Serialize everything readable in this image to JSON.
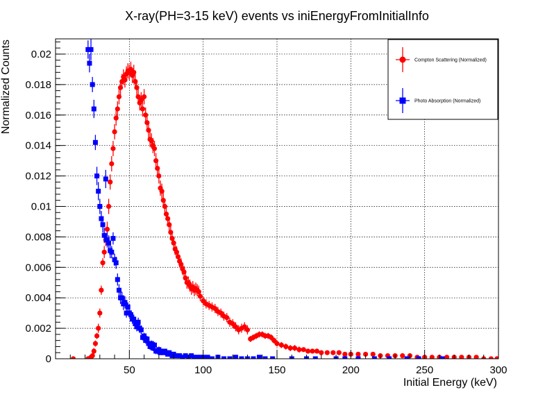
{
  "chart_data": {
    "type": "scatter",
    "title": "X-ray(PH=3-15 keV) events vs iniEnergyFromInitialInfo",
    "xlabel": "Initial Energy (keV)",
    "ylabel": "Normalized Counts",
    "xlim": [
      0,
      300
    ],
    "ylim": [
      0,
      0.021
    ],
    "x_ticks": [
      50,
      100,
      150,
      200,
      250,
      300
    ],
    "x_tick_labels": [
      "50",
      "100",
      "150",
      "200",
      "250",
      "300"
    ],
    "y_ticks": [
      0,
      0.002,
      0.004,
      0.006,
      0.008,
      0.01,
      0.012,
      0.014,
      0.016,
      0.018,
      0.02
    ],
    "y_tick_labels": [
      "0",
      "0.002",
      "0.004",
      "0.006",
      "0.008",
      "0.01",
      "0.012",
      "0.014",
      "0.016",
      "0.018",
      "0.02"
    ],
    "grid": true,
    "legend_position": "top-right",
    "series": [
      {
        "name": "Compton Scattering (Normalized)",
        "color": "#ff0000",
        "marker": "circle",
        "points": [
          [
            12,
            0.0,
            0.0
          ],
          [
            22,
            0.0,
            0.0
          ],
          [
            24,
            0.0001,
            0.0001
          ],
          [
            25,
            0.0002,
            0.0001
          ],
          [
            26,
            0.0005,
            0.0002
          ],
          [
            27,
            0.001,
            0.0002
          ],
          [
            28,
            0.0015,
            0.0002
          ],
          [
            29,
            0.002,
            0.0003
          ],
          [
            30,
            0.003,
            0.0003
          ],
          [
            31,
            0.0045,
            0.0003
          ],
          [
            32,
            0.0063,
            0.0003
          ],
          [
            33,
            0.007,
            0.0004
          ],
          [
            34,
            0.0078,
            0.0004
          ],
          [
            35,
            0.0085,
            0.0005
          ],
          [
            36,
            0.01,
            0.0005
          ],
          [
            37,
            0.0116,
            0.0005
          ],
          [
            38,
            0.0128,
            0.0005
          ],
          [
            39,
            0.0138,
            0.0005
          ],
          [
            40,
            0.0149,
            0.0005
          ],
          [
            41,
            0.0158,
            0.0005
          ],
          [
            42,
            0.0164,
            0.0005
          ],
          [
            43,
            0.0172,
            0.0005
          ],
          [
            44,
            0.0178,
            0.0005
          ],
          [
            45,
            0.0182,
            0.0005
          ],
          [
            46,
            0.0185,
            0.0005
          ],
          [
            47,
            0.0183,
            0.0005
          ],
          [
            48,
            0.0187,
            0.0005
          ],
          [
            49,
            0.0189,
            0.0005
          ],
          [
            50,
            0.0188,
            0.0005
          ],
          [
            51,
            0.019,
            0.0005
          ],
          [
            52,
            0.0186,
            0.0005
          ],
          [
            53,
            0.0188,
            0.0005
          ],
          [
            54,
            0.0182,
            0.0005
          ],
          [
            55,
            0.0178,
            0.0005
          ],
          [
            56,
            0.0172,
            0.0005
          ],
          [
            57,
            0.0168,
            0.0005
          ],
          [
            58,
            0.017,
            0.0005
          ],
          [
            59,
            0.0164,
            0.0005
          ],
          [
            60,
            0.0172,
            0.0005
          ],
          [
            61,
            0.016,
            0.0005
          ],
          [
            62,
            0.0155,
            0.0005
          ],
          [
            63,
            0.015,
            0.0005
          ],
          [
            64,
            0.0144,
            0.0005
          ],
          [
            65,
            0.0143,
            0.0005
          ],
          [
            66,
            0.014,
            0.0005
          ],
          [
            67,
            0.0138,
            0.0005
          ],
          [
            68,
            0.013,
            0.0005
          ],
          [
            69,
            0.0125,
            0.0005
          ],
          [
            70,
            0.012,
            0.0005
          ],
          [
            71,
            0.0112,
            0.0005
          ],
          [
            72,
            0.011,
            0.0005
          ],
          [
            73,
            0.0104,
            0.0005
          ],
          [
            74,
            0.01,
            0.0004
          ],
          [
            75,
            0.0095,
            0.0004
          ],
          [
            76,
            0.0092,
            0.0004
          ],
          [
            77,
            0.0088,
            0.0004
          ],
          [
            78,
            0.0083,
            0.0004
          ],
          [
            79,
            0.0079,
            0.0004
          ],
          [
            80,
            0.0076,
            0.0004
          ],
          [
            81,
            0.0072,
            0.0004
          ],
          [
            82,
            0.007,
            0.0004
          ],
          [
            83,
            0.0067,
            0.0004
          ],
          [
            84,
            0.0064,
            0.0004
          ],
          [
            85,
            0.0062,
            0.0004
          ],
          [
            86,
            0.0059,
            0.0004
          ],
          [
            87,
            0.0057,
            0.0004
          ],
          [
            88,
            0.0053,
            0.0004
          ],
          [
            89,
            0.005,
            0.0004
          ],
          [
            90,
            0.005,
            0.0004
          ],
          [
            91,
            0.0048,
            0.0004
          ],
          [
            92,
            0.0046,
            0.0004
          ],
          [
            93,
            0.0047,
            0.0004
          ],
          [
            94,
            0.0045,
            0.0004
          ],
          [
            95,
            0.0046,
            0.0004
          ],
          [
            96,
            0.0045,
            0.0004
          ],
          [
            97,
            0.0044,
            0.0004
          ],
          [
            98,
            0.0041,
            0.0003
          ],
          [
            100,
            0.0038,
            0.0003
          ],
          [
            102,
            0.0036,
            0.0003
          ],
          [
            104,
            0.0035,
            0.0003
          ],
          [
            106,
            0.0034,
            0.0003
          ],
          [
            108,
            0.0033,
            0.0003
          ],
          [
            110,
            0.0031,
            0.0003
          ],
          [
            112,
            0.003,
            0.0003
          ],
          [
            114,
            0.0028,
            0.0003
          ],
          [
            116,
            0.0027,
            0.0003
          ],
          [
            118,
            0.0024,
            0.0003
          ],
          [
            120,
            0.0023,
            0.0003
          ],
          [
            122,
            0.0021,
            0.0003
          ],
          [
            124,
            0.0019,
            0.0003
          ],
          [
            126,
            0.002,
            0.0003
          ],
          [
            128,
            0.0021,
            0.0003
          ],
          [
            130,
            0.0019,
            0.0003
          ],
          [
            132,
            0.0013,
            0.0002
          ],
          [
            134,
            0.0014,
            0.0002
          ],
          [
            136,
            0.0015,
            0.0002
          ],
          [
            138,
            0.0016,
            0.0002
          ],
          [
            140,
            0.0016,
            0.0002
          ],
          [
            142,
            0.0015,
            0.0002
          ],
          [
            144,
            0.0015,
            0.0002
          ],
          [
            146,
            0.0014,
            0.0002
          ],
          [
            148,
            0.0012,
            0.0002
          ],
          [
            150,
            0.001,
            0.0002
          ],
          [
            153,
            0.0009,
            0.0002
          ],
          [
            156,
            0.0008,
            0.0002
          ],
          [
            159,
            0.0007,
            0.0002
          ],
          [
            162,
            0.0007,
            0.0002
          ],
          [
            165,
            0.0006,
            0.0002
          ],
          [
            168,
            0.0006,
            0.0001
          ],
          [
            171,
            0.0005,
            0.0001
          ],
          [
            174,
            0.0005,
            0.0001
          ],
          [
            177,
            0.0005,
            0.0001
          ],
          [
            180,
            0.0004,
            0.0001
          ],
          [
            184,
            0.0004,
            0.0001
          ],
          [
            188,
            0.0004,
            0.0001
          ],
          [
            192,
            0.0004,
            0.0001
          ],
          [
            196,
            0.0003,
            0.0001
          ],
          [
            200,
            0.0003,
            0.0001
          ],
          [
            205,
            0.0003,
            0.0001
          ],
          [
            210,
            0.0003,
            0.0001
          ],
          [
            215,
            0.0003,
            0.0001
          ],
          [
            220,
            0.0002,
            0.0001
          ],
          [
            225,
            0.0002,
            0.0001
          ],
          [
            230,
            0.0002,
            0.0001
          ],
          [
            235,
            0.0002,
            0.0001
          ],
          [
            240,
            0.0002,
            0.0001
          ],
          [
            245,
            0.0001,
            0.0001
          ],
          [
            250,
            0.0001,
            0.0001
          ],
          [
            255,
            0.0001,
            0.0001
          ],
          [
            260,
            0.0001,
            0.0001
          ],
          [
            265,
            0.0001,
            0.0001
          ],
          [
            270,
            0.0001,
            0.0001
          ],
          [
            275,
            0.0001,
            0.0001
          ],
          [
            280,
            0.0001,
            0.0001
          ],
          [
            285,
            0.0001,
            0.0001
          ],
          [
            290,
            0.0,
            0.0001
          ],
          [
            295,
            0.0,
            0.0001
          ],
          [
            299,
            0.0,
            0.0001
          ]
        ]
      },
      {
        "name": "Photo Absorption (Normalized)",
        "color": "#0000ff",
        "marker": "square",
        "points": [
          [
            22,
            0.0203,
            0.0006
          ],
          [
            23,
            0.0194,
            0.0006
          ],
          [
            24,
            0.0203,
            0.0007
          ],
          [
            25,
            0.018,
            0.0005
          ],
          [
            26,
            0.0164,
            0.0006
          ],
          [
            27,
            0.0142,
            0.0005
          ],
          [
            28,
            0.012,
            0.0006
          ],
          [
            29,
            0.011,
            0.0006
          ],
          [
            30,
            0.01,
            0.0005
          ],
          [
            31,
            0.0092,
            0.0005
          ],
          [
            32,
            0.0088,
            0.0005
          ],
          [
            33,
            0.0081,
            0.0005
          ],
          [
            34,
            0.0118,
            0.0006
          ],
          [
            35,
            0.0078,
            0.0005
          ],
          [
            36,
            0.0076,
            0.0005
          ],
          [
            37,
            0.0071,
            0.0005
          ],
          [
            38,
            0.007,
            0.0004
          ],
          [
            39,
            0.0079,
            0.0004
          ],
          [
            40,
            0.0065,
            0.0004
          ],
          [
            41,
            0.0063,
            0.0004
          ],
          [
            42,
            0.0052,
            0.0004
          ],
          [
            43,
            0.0045,
            0.0004
          ],
          [
            44,
            0.004,
            0.0004
          ],
          [
            45,
            0.004,
            0.0004
          ],
          [
            46,
            0.0036,
            0.0004
          ],
          [
            47,
            0.0037,
            0.0004
          ],
          [
            48,
            0.003,
            0.0003
          ],
          [
            49,
            0.0034,
            0.0003
          ],
          [
            50,
            0.003,
            0.0003
          ],
          [
            51,
            0.0029,
            0.0003
          ],
          [
            52,
            0.0026,
            0.0003
          ],
          [
            53,
            0.0026,
            0.0003
          ],
          [
            54,
            0.0023,
            0.0003
          ],
          [
            55,
            0.0021,
            0.0003
          ],
          [
            56,
            0.0024,
            0.0003
          ],
          [
            57,
            0.002,
            0.0003
          ],
          [
            58,
            0.0019,
            0.0003
          ],
          [
            59,
            0.0014,
            0.0002
          ],
          [
            60,
            0.0015,
            0.0002
          ],
          [
            61,
            0.0012,
            0.0002
          ],
          [
            62,
            0.0013,
            0.0002
          ],
          [
            63,
            0.001,
            0.0002
          ],
          [
            64,
            0.0008,
            0.0002
          ],
          [
            65,
            0.001,
            0.0002
          ],
          [
            66,
            0.0007,
            0.0002
          ],
          [
            67,
            0.0009,
            0.0002
          ],
          [
            68,
            0.0005,
            0.0002
          ],
          [
            69,
            0.0005,
            0.0002
          ],
          [
            70,
            0.0006,
            0.0002
          ],
          [
            71,
            0.0004,
            0.0001
          ],
          [
            72,
            0.0005,
            0.0001
          ],
          [
            73,
            0.0004,
            0.0001
          ],
          [
            74,
            0.0005,
            0.0001
          ],
          [
            75,
            0.0004,
            0.0001
          ],
          [
            76,
            0.0003,
            0.0001
          ],
          [
            77,
            0.0004,
            0.0001
          ],
          [
            78,
            0.0003,
            0.0001
          ],
          [
            79,
            0.0002,
            0.0001
          ],
          [
            80,
            0.0003,
            0.0001
          ],
          [
            82,
            0.0002,
            0.0001
          ],
          [
            84,
            0.0002,
            0.0001
          ],
          [
            86,
            0.0001,
            0.0001
          ],
          [
            88,
            0.0002,
            0.0001
          ],
          [
            90,
            0.0001,
            0.0001
          ],
          [
            92,
            0.0002,
            0.0001
          ],
          [
            94,
            0.0001,
            0.0001
          ],
          [
            96,
            0.0001,
            0.0001
          ],
          [
            98,
            0.0001,
            0.0001
          ],
          [
            100,
            0.0001,
            0.0001
          ],
          [
            103,
            0.0001,
            0.0001
          ],
          [
            106,
            0.0,
            0.0001
          ],
          [
            110,
            0.0001,
            0.0001
          ],
          [
            114,
            0.0,
            0.0001
          ],
          [
            118,
            0.0,
            0.0001
          ],
          [
            122,
            0.0001,
            0.0001
          ],
          [
            126,
            0.0,
            0.0001
          ],
          [
            130,
            0.0,
            0.0001
          ],
          [
            134,
            0.0,
            0.0001
          ],
          [
            138,
            0.0001,
            0.0001
          ],
          [
            142,
            0.0,
            0.0001
          ],
          [
            147,
            0.0,
            0.0001
          ],
          [
            160,
            0.0,
            0.0001
          ],
          [
            170,
            0.0,
            0.0001
          ],
          [
            176,
            0.0,
            0.0001
          ],
          [
            190,
            0.0,
            0.0001
          ],
          [
            196,
            0.0,
            0.0001
          ],
          [
            205,
            0.0,
            0.0001
          ],
          [
            216,
            0.0,
            0.0001
          ],
          [
            226,
            0.0,
            0.0001
          ],
          [
            238,
            0.0,
            0.0001
          ],
          [
            246,
            0.0,
            0.0001
          ],
          [
            262,
            0.0,
            0.0001
          ]
        ]
      }
    ]
  }
}
